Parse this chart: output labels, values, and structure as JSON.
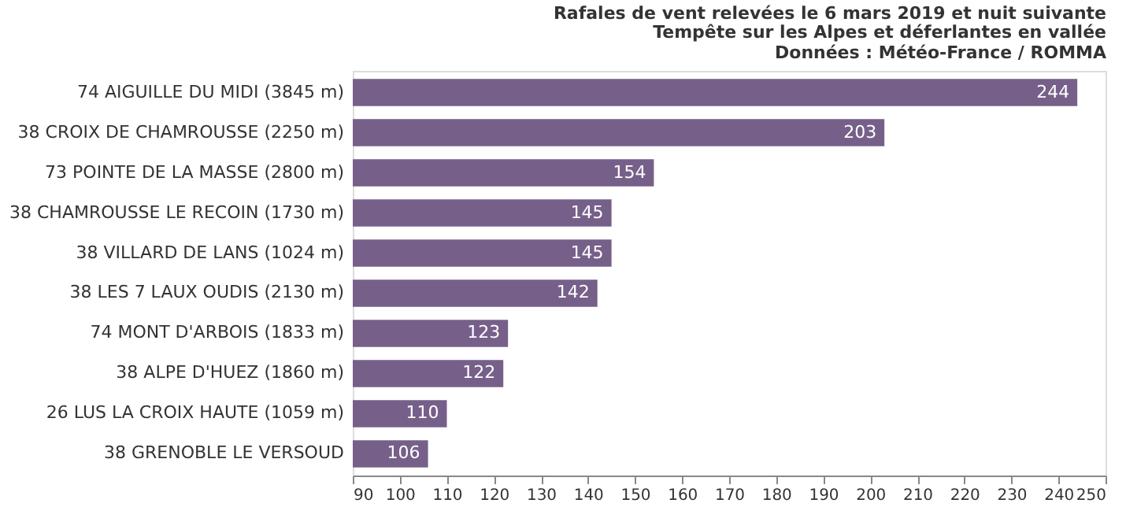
{
  "chart_data": {
    "type": "bar",
    "orientation": "horizontal",
    "title": "Rafales de vent relevées le 6 mars 2019 et nuit suivante",
    "subtitle": "Tempête sur les Alpes et déferlantes en vallée",
    "annotations": [
      "Données : Météo-France / ROMMA"
    ],
    "categories": [
      "74 AIGUILLE DU MIDI (3845 m)",
      "38 CROIX DE CHAMROUSSE (2250 m)",
      "73 POINTE DE LA MASSE (2800 m)",
      "38 CHAMROUSSE LE RECOIN (1730 m)",
      "38 VILLARD DE LANS (1024 m)",
      "38 LES 7 LAUX OUDIS (2130 m)",
      "74 MONT D'ARBOIS (1833 m)",
      "38 ALPE D'HUEZ (1860 m)",
      "26 LUS LA CROIX HAUTE (1059 m)",
      "38 GRENOBLE LE VERSOUD"
    ],
    "values": [
      244,
      203,
      154,
      145,
      145,
      142,
      123,
      122,
      110,
      106
    ],
    "color": "#76608a",
    "xlim": [
      90,
      250
    ],
    "xticks": [
      90,
      100,
      110,
      120,
      130,
      140,
      150,
      160,
      170,
      180,
      190,
      200,
      210,
      220,
      230,
      240,
      250
    ],
    "data_labels": true
  }
}
